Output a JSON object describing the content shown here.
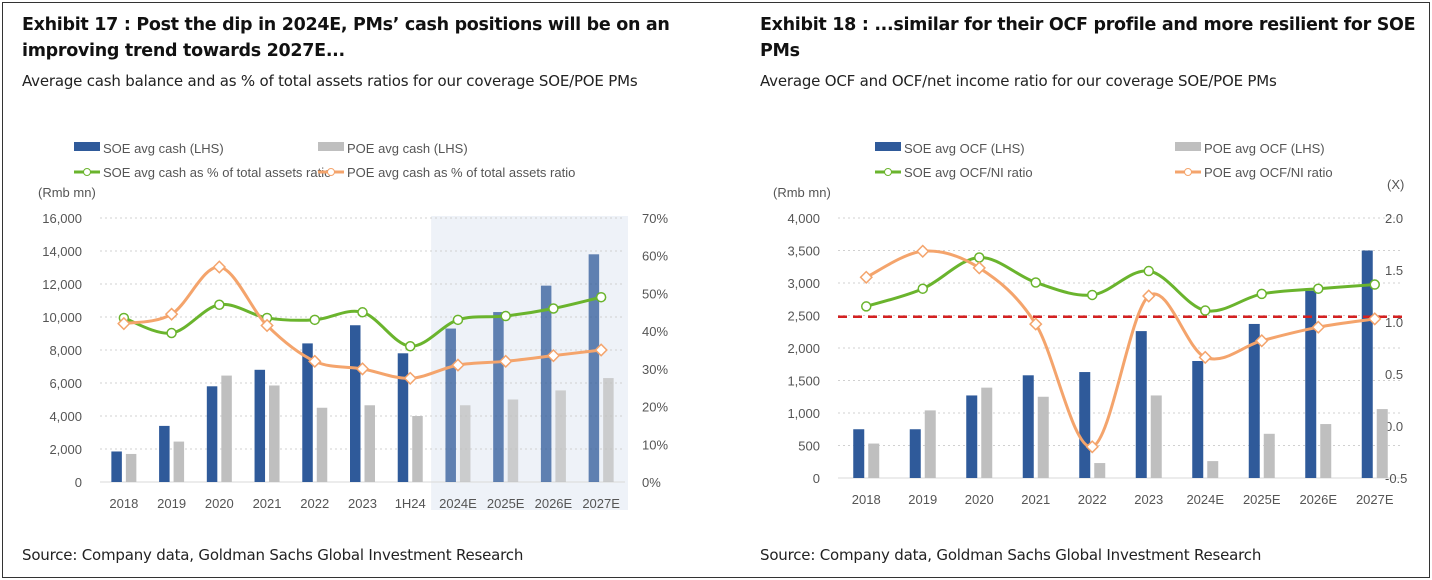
{
  "chart_data": [
    {
      "type": "bar",
      "title": "Exhibit 17 : Post the dip in 2024E, PMs’ cash positions will be on an improving trend towards 2027E...",
      "subtitle": "Average cash balance and as % of total assets ratios for our coverage SOE/POE PMs",
      "source": "Source: Company data, Goldman Sachs Global Investment Research",
      "ylabel": "(Rmb mn)",
      "y2label": "",
      "categories": [
        "2018",
        "2019",
        "2020",
        "2021",
        "2022",
        "2023",
        "1H24",
        "2024E",
        "2025E",
        "2026E",
        "2027E"
      ],
      "forecast_start": "2024E",
      "ylim": [
        0,
        16000
      ],
      "yticks": [
        "0",
        "2,000",
        "4,000",
        "6,000",
        "8,000",
        "10,000",
        "12,000",
        "14,000",
        "16,000"
      ],
      "y2lim": [
        0,
        70
      ],
      "y2ticks": [
        "0%",
        "10%",
        "20%",
        "30%",
        "40%",
        "50%",
        "60%",
        "70%"
      ],
      "bars": [
        {
          "name": "SOE avg cash (LHS)",
          "color": "#2f5a9a",
          "values": [
            1850,
            3400,
            5800,
            6800,
            8400,
            9500,
            7800,
            9300,
            10300,
            11900,
            13800
          ]
        },
        {
          "name": "POE avg cash (LHS)",
          "color": "#bfbfbf",
          "values": [
            1700,
            2450,
            6450,
            5850,
            4500,
            4650,
            4000,
            4650,
            5000,
            5550,
            6300
          ]
        }
      ],
      "lines": [
        {
          "name": "SOE avg cash as % of total assets ratio",
          "color": "#6ab42d",
          "values": [
            43.5,
            39.5,
            47,
            43.5,
            43,
            45,
            36,
            43,
            44,
            46,
            49
          ]
        },
        {
          "name": "POE avg cash as % of total assets ratio",
          "color": "#f4a46c",
          "values": [
            42,
            44.5,
            57,
            41.5,
            32,
            30,
            27.5,
            31,
            32,
            33.5,
            35
          ]
        }
      ]
    },
    {
      "type": "bar",
      "title": "Exhibit 18 : ...similar for their OCF profile and more resilient for SOE PMs",
      "subtitle": "Average OCF and OCF/net income ratio for our coverage SOE/POE PMs",
      "source": "Source: Company data, Goldman Sachs Global Investment Research",
      "ylabel": "(Rmb mn)",
      "y2label": "(X)",
      "categories": [
        "2018",
        "2019",
        "2020",
        "2021",
        "2022",
        "2023",
        "2024E",
        "2025E",
        "2026E",
        "2027E"
      ],
      "ylim": [
        0,
        4000
      ],
      "yticks": [
        "0",
        "500",
        "1,000",
        "1,500",
        "2,000",
        "2,500",
        "3,000",
        "3,500",
        "4,000"
      ],
      "y2lim": [
        -0.5,
        2.0
      ],
      "y2ticks": [
        "-0.5",
        "0.0",
        "0.5",
        "1.0",
        "1.5",
        "2.0"
      ],
      "reference_line": {
        "value": 1.05,
        "axis": "right",
        "color": "#d42020"
      },
      "bars": [
        {
          "name": "SOE avg OCF (LHS)",
          "color": "#2f5a9a",
          "values": [
            750,
            750,
            1270,
            1580,
            1630,
            2260,
            1800,
            2370,
            2880,
            3500
          ]
        },
        {
          "name": "POE avg OCF (LHS)",
          "color": "#bfbfbf",
          "values": [
            530,
            1040,
            1390,
            1250,
            230,
            1270,
            260,
            680,
            830,
            1060
          ]
        }
      ],
      "lines": [
        {
          "name": "SOE avg OCF/NI ratio",
          "color": "#6ab42d",
          "values": [
            1.15,
            1.32,
            1.62,
            1.38,
            1.26,
            1.49,
            1.11,
            1.27,
            1.32,
            1.36
          ]
        },
        {
          "name": "POE avg OCF/NI ratio",
          "color": "#f4a46c",
          "values": [
            1.43,
            1.68,
            1.52,
            0.98,
            -0.2,
            1.25,
            0.66,
            0.82,
            0.95,
            1.03
          ]
        }
      ]
    }
  ]
}
